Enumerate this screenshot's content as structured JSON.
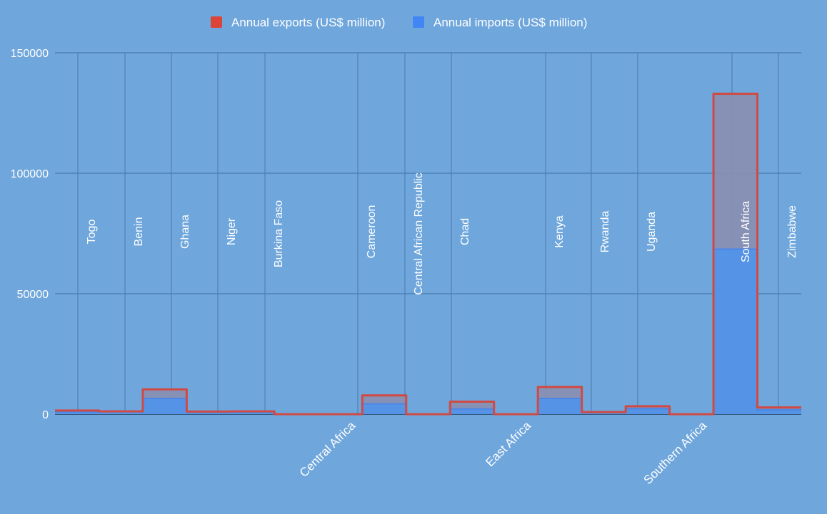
{
  "chart_data": {
    "type": "area",
    "title": "",
    "xlabel": "",
    "ylabel": "",
    "ylim": [
      0,
      150000
    ],
    "yticks": [
      0,
      50000,
      100000,
      150000
    ],
    "grid": true,
    "legend_position": "top",
    "categories": [
      "",
      "",
      "",
      "",
      "",
      "",
      "Central Africa",
      "",
      "",
      "",
      "East Africa",
      "",
      "",
      "",
      "Southern Africa",
      "",
      ""
    ],
    "region_labels": [
      "Central Africa",
      "East Africa",
      "Southern Africa"
    ],
    "country_labels": [
      "Togo",
      "Benin",
      "Ghana",
      "Niger",
      "Burkina Faso",
      "Cameroon",
      "Central African Republic",
      "Chad",
      "Kenya",
      "Rwanda",
      "Uganda",
      "South Africa",
      "Zimbabwe"
    ],
    "series": [
      {
        "name": "Annual exports (US$ million)",
        "color": "#db4437",
        "values": [
          1500,
          1200,
          10300,
          1100,
          1200,
          0,
          0,
          7800,
          0,
          5200,
          0,
          11300,
          900,
          3300,
          0,
          133000,
          2800
        ]
      },
      {
        "name": "Annual imports (US$ million)",
        "color": "#4285f4",
        "values": [
          900,
          1000,
          6500,
          800,
          900,
          0,
          0,
          4300,
          0,
          2200,
          0,
          6500,
          700,
          2300,
          0,
          68500,
          1800
        ]
      }
    ]
  }
}
